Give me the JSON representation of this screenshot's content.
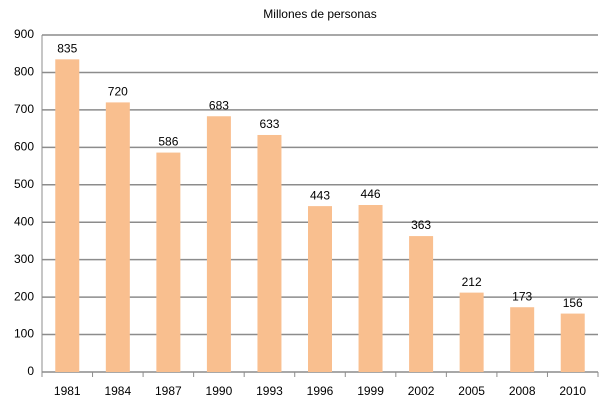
{
  "chart_data": {
    "type": "bar",
    "title": "Millones de personas",
    "categories": [
      "1981",
      "1984",
      "1987",
      "1990",
      "1993",
      "1996",
      "1999",
      "2002",
      "2005",
      "2008",
      "2010"
    ],
    "values": [
      835,
      720,
      586,
      683,
      633,
      443,
      446,
      363,
      212,
      173,
      156
    ],
    "color": "#f9bf8f",
    "ylim": [
      0,
      900
    ],
    "yticks": [
      0,
      100,
      200,
      300,
      400,
      500,
      600,
      700,
      800,
      900
    ],
    "grid": true
  }
}
